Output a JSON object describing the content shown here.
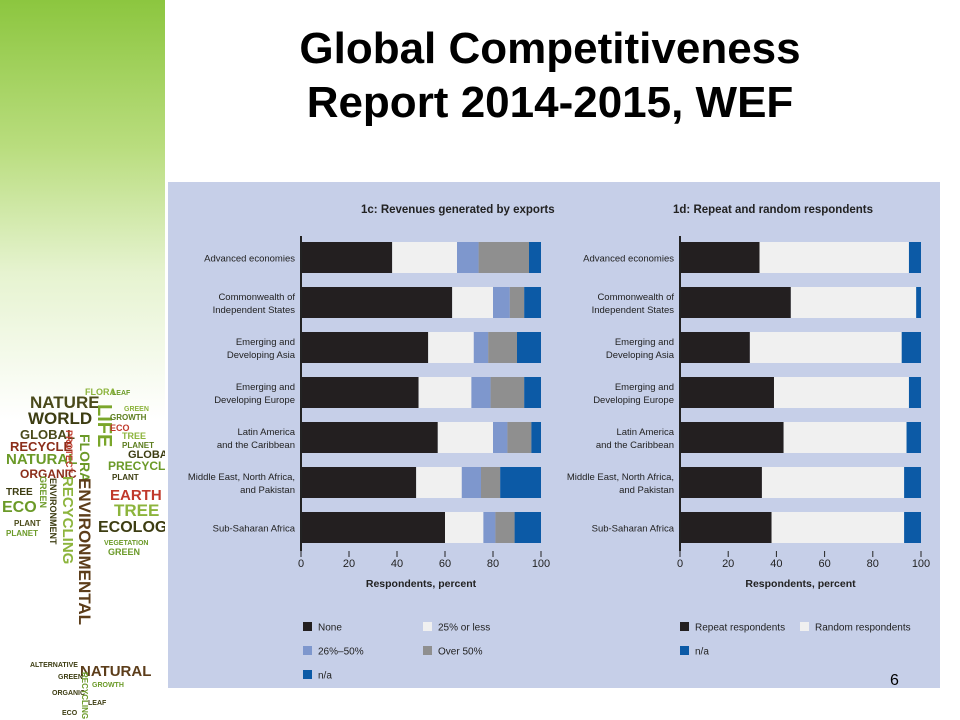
{
  "slide": {
    "title_line1": "Global Competitiveness",
    "title_line2": "Report 2014-2015, WEF",
    "page_number": "6"
  },
  "wordcloud": {
    "words": [
      "NATURE",
      "FLORA",
      "LEAF",
      "GREEN",
      "WORLD",
      "LIFE",
      "GROWTH",
      "ECO",
      "TREE",
      "PLANET",
      "GLOBAL",
      "RECYCLE",
      "NATURAL",
      "PROTECT",
      "FLORA",
      "GLOBAL",
      "ORGANIC",
      "PRECYCLE",
      "PLANT",
      "TREE",
      "EARTH",
      "ECO",
      "GREEN",
      "ENVIRONMENT",
      "TREE",
      "PLANT",
      "RECYCLING",
      "ECOLOGY",
      "ENVIRONMENTAL",
      "VEGETATION",
      "GREEN",
      "PLANET",
      "ALTERNATIVE",
      "NATURAL",
      "GREEN",
      "GROWTH",
      "ORGANIC",
      "RECYCLING",
      "LEAF",
      "ECO"
    ]
  },
  "colors": {
    "none": "#231f20",
    "le25": "#f0f0f0",
    "p26_50": "#7e97cd",
    "over50": "#8f8f8f",
    "na": "#0c5aa6",
    "repeat": "#231f20",
    "random": "#f0f0f0",
    "panel": "#c6cfe8"
  },
  "chart_data": [
    {
      "type": "bar",
      "orientation": "horizontal",
      "stacked": true,
      "title": "1c: Revenues generated by exports",
      "xlabel": "Respondents, percent",
      "xlim": [
        0,
        100
      ],
      "xticks": [
        "0",
        "20",
        "40",
        "60",
        "80",
        "100"
      ],
      "categories": [
        [
          "Advanced economies"
        ],
        [
          "Commonwealth of",
          "Independent States"
        ],
        [
          "Emerging and",
          "Developing Asia"
        ],
        [
          "Emerging and",
          "Developing Europe"
        ],
        [
          "Latin America",
          "and the Caribbean"
        ],
        [
          "Middle East, North Africa,",
          "and Pakistan"
        ],
        [
          "Sub-Saharan Africa"
        ]
      ],
      "series": [
        {
          "name": "None",
          "color_key": "none",
          "values": [
            38,
            63,
            53,
            49,
            57,
            48,
            60
          ]
        },
        {
          "name": "25% or less",
          "color_key": "le25",
          "values": [
            27,
            17,
            19,
            22,
            23,
            19,
            16
          ]
        },
        {
          "name": "26%–50%",
          "color_key": "p26_50",
          "values": [
            9,
            7,
            6,
            8,
            6,
            8,
            5
          ]
        },
        {
          "name": "Over 50%",
          "color_key": "over50",
          "values": [
            21,
            6,
            12,
            14,
            10,
            8,
            8
          ]
        },
        {
          "name": "n/a",
          "color_key": "na",
          "values": [
            5,
            7,
            10,
            7,
            4,
            17,
            11
          ]
        }
      ],
      "legend": [
        [
          "None",
          "25% or less"
        ],
        [
          "26%–50%",
          "Over 50%"
        ],
        [
          "n/a"
        ]
      ]
    },
    {
      "type": "bar",
      "orientation": "horizontal",
      "stacked": true,
      "title": "1d: Repeat and random respondents",
      "xlabel": "Respondents, percent",
      "xlim": [
        0,
        100
      ],
      "xticks": [
        "0",
        "20",
        "40",
        "60",
        "80",
        "100"
      ],
      "categories": [
        [
          "Advanced economies"
        ],
        [
          "Commonwealth of",
          "Independent States"
        ],
        [
          "Emerging and",
          "Developing Asia"
        ],
        [
          "Emerging and",
          "Developing Europe"
        ],
        [
          "Latin America",
          "and the Caribbean"
        ],
        [
          "Middle East, North Africa,",
          "and Pakistan"
        ],
        [
          "Sub-Saharan Africa"
        ]
      ],
      "series": [
        {
          "name": "Repeat respondents",
          "color_key": "repeat",
          "values": [
            33,
            46,
            29,
            39,
            43,
            34,
            38
          ]
        },
        {
          "name": "Random respondents",
          "color_key": "random",
          "values": [
            62,
            52,
            63,
            56,
            51,
            59,
            55
          ]
        },
        {
          "name": "n/a",
          "color_key": "na",
          "values": [
            5,
            2,
            8,
            5,
            6,
            7,
            7
          ]
        }
      ],
      "legend": [
        [
          "Repeat respondents",
          "Random respondents"
        ],
        [
          "n/a"
        ]
      ]
    }
  ]
}
